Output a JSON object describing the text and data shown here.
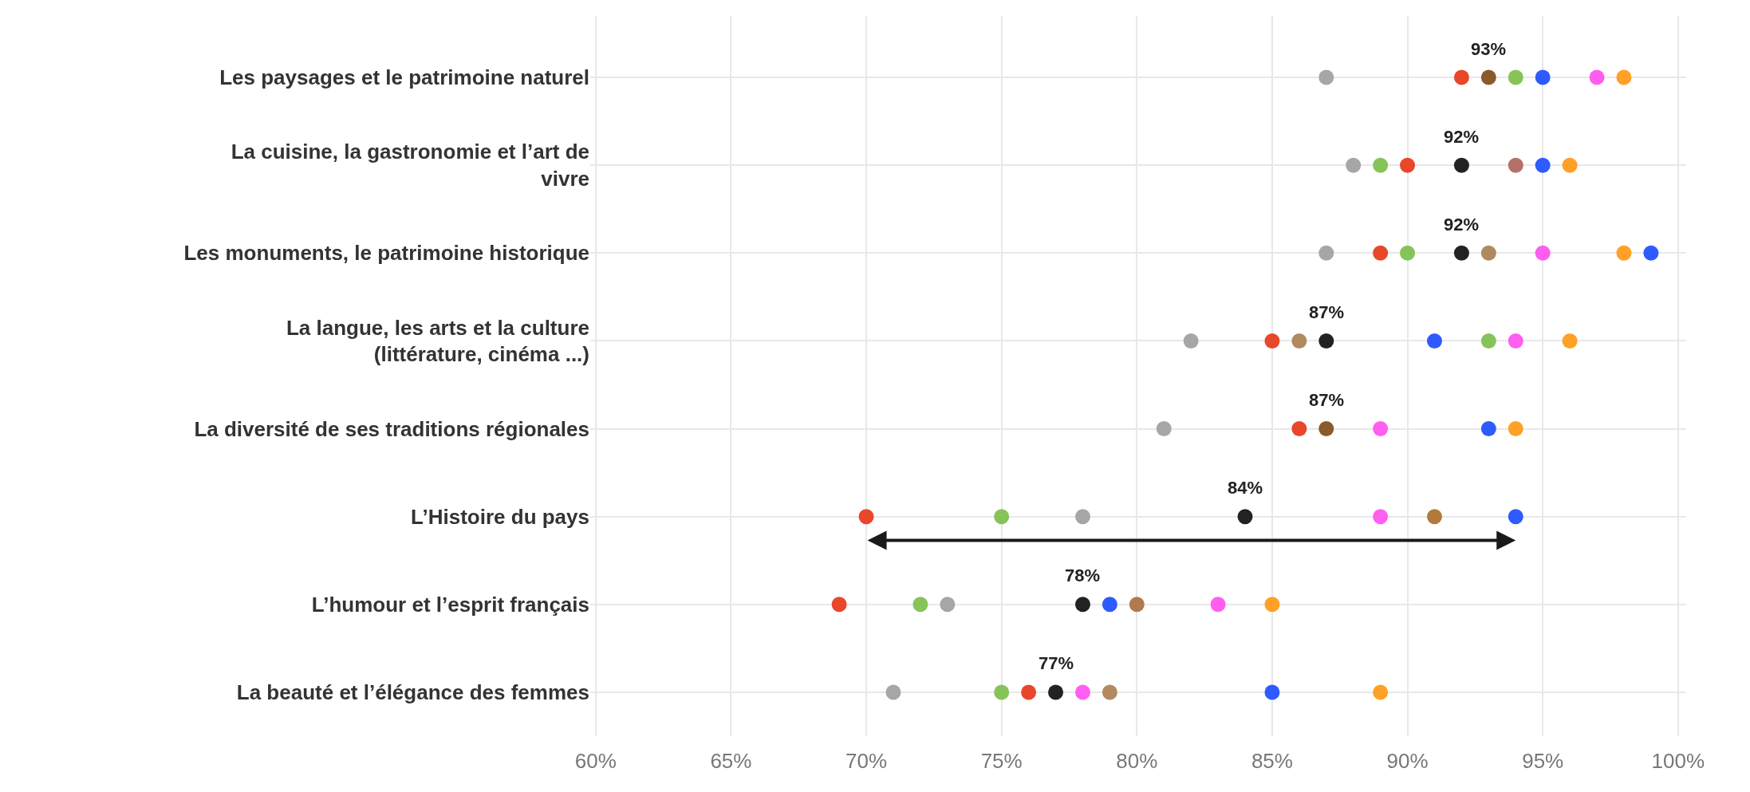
{
  "chart_data": {
    "type": "scatter",
    "orientation": "horizontal",
    "categories": [
      "Les paysages et le patrimoine naturel",
      "La cuisine, la gastronomie et l’art de vivre",
      "Les monuments, le patrimoine historique",
      "La langue, les arts et la culture (littérature, cinéma ...)",
      "La diversité de ses traditions régionales",
      "L’Histoire du pays",
      "L’humour et l’esprit français",
      "La beauté et l’élégance des femmes"
    ],
    "series": [
      {
        "color": "#a6a6a6",
        "values": [
          87,
          88,
          87,
          82,
          81,
          78,
          73,
          71
        ]
      },
      {
        "color": "#e8472a",
        "values": [
          92,
          90,
          89,
          85,
          86,
          70,
          69,
          76
        ]
      },
      {
        "color": "#86c45a",
        "values": [
          94,
          89,
          90,
          93,
          null,
          75,
          72,
          75
        ]
      },
      {
        "color": "#222222",
        "values": [
          null,
          92,
          92,
          87,
          null,
          84,
          78,
          77
        ]
      },
      {
        "colors": [
          "#8b5a2b",
          "#b5706a",
          "#b08a5e",
          "#b08a5e",
          "#8b5a2b",
          "#b07a3a",
          "#b07a4e",
          "#b08a5e"
        ],
        "values": [
          93,
          94,
          93,
          86,
          87,
          91,
          80,
          79
        ]
      },
      {
        "color": "#2e5bff",
        "values": [
          95,
          95,
          99,
          91,
          93,
          94,
          79,
          85
        ]
      },
      {
        "color": "#ff5ef0",
        "values": [
          97,
          null,
          95,
          94,
          89,
          89,
          83,
          78
        ]
      },
      {
        "color": "#ffa126",
        "values": [
          98,
          96,
          98,
          96,
          94,
          null,
          85,
          89
        ]
      }
    ],
    "annotations": [
      {
        "text": "93%",
        "x": 93,
        "y": "Les paysages et le patrimoine naturel"
      },
      {
        "text": "92%",
        "x": 92,
        "y": "La cuisine, la gastronomie et l’art de vivre"
      },
      {
        "text": "92%",
        "x": 92,
        "y": "Les monuments, le patrimoine historique"
      },
      {
        "text": "87%",
        "x": 87,
        "y": "La langue, les arts et la culture (littérature, cinéma ...)"
      },
      {
        "text": "87%",
        "x": 87,
        "y": "La diversité de ses traditions régionales"
      },
      {
        "text": "84%",
        "x": 84,
        "y": "L’Histoire du pays"
      },
      {
        "text": "78%",
        "x": 78,
        "y": "L’humour et l’esprit français"
      },
      {
        "text": "77%",
        "x": 77,
        "y": "La beauté et l’élégance des femmes"
      }
    ],
    "xlim": [
      59.8,
      100.3
    ],
    "xticks": [
      {
        "value": 60,
        "label": "60%"
      },
      {
        "value": 65,
        "label": "65%"
      },
      {
        "value": 70,
        "label": "70%"
      },
      {
        "value": 75,
        "label": "75%"
      },
      {
        "value": 80,
        "label": "80%"
      },
      {
        "value": 85,
        "label": "85%"
      },
      {
        "value": 90,
        "label": "90%"
      },
      {
        "value": 95,
        "label": "95%"
      },
      {
        "value": 100,
        "label": "100%"
      }
    ],
    "grid": true,
    "marker": "circle"
  }
}
